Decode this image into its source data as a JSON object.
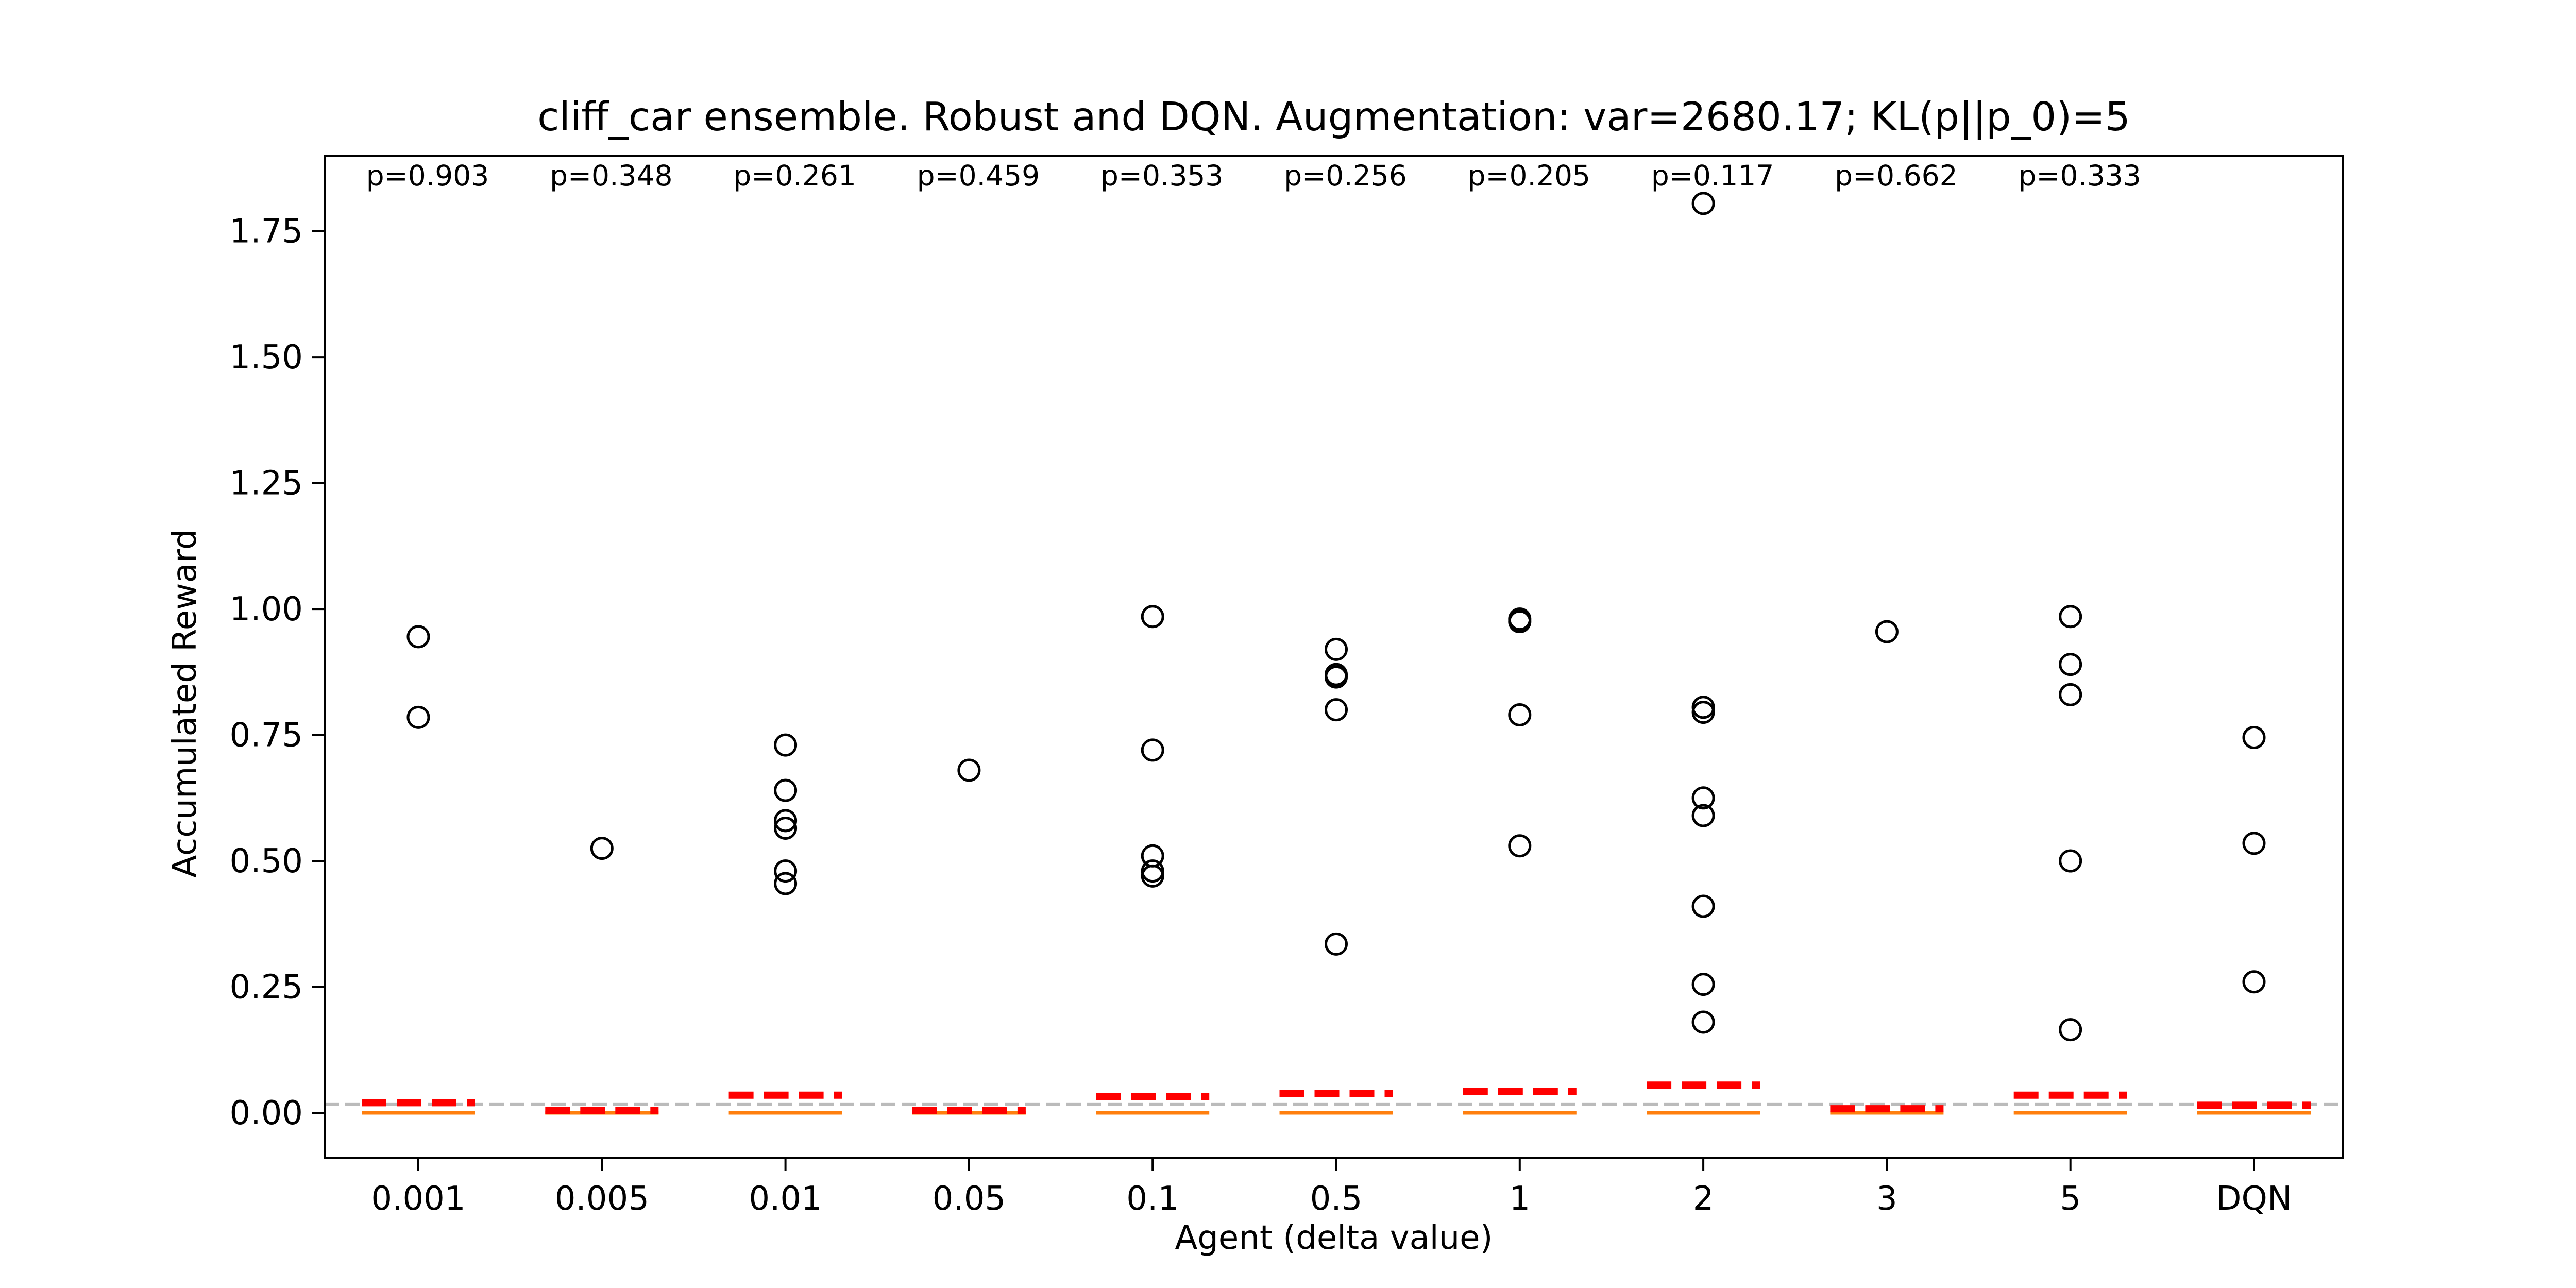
{
  "chart_data": {
    "type": "box",
    "title": "cliff_car ensemble. Robust and DQN. Augmentation: var=2680.17; KL(p||p_0)=5",
    "xlabel": "Agent (delta value)",
    "ylabel": "Accumulated Reward",
    "ylim": [
      -0.09,
      1.9
    ],
    "yticks": [
      0.0,
      0.25,
      0.5,
      0.75,
      1.0,
      1.25,
      1.5,
      1.75
    ],
    "ytick_labels": [
      "0.00",
      "0.25",
      "0.50",
      "0.75",
      "1.00",
      "1.25",
      "1.50",
      "1.75"
    ],
    "categories": [
      "0.001",
      "0.005",
      "0.01",
      "0.05",
      "0.1",
      "0.5",
      "1",
      "2",
      "3",
      "5",
      "DQN"
    ],
    "reference_line": {
      "y": 0.017,
      "style": "dashed",
      "color": "#bbbbbb"
    },
    "colors": {
      "median": "#ff7f0e",
      "mean": "#ff0000",
      "outlier": "#000000",
      "frame": "#000000"
    },
    "groups": [
      {
        "label": "0.001",
        "p_value": "p=0.903",
        "median": 0.0,
        "mean": 0.02,
        "outliers": [
          0.945,
          0.785
        ]
      },
      {
        "label": "0.005",
        "p_value": "p=0.348",
        "median": 0.0,
        "mean": 0.005,
        "outliers": [
          0.525
        ]
      },
      {
        "label": "0.01",
        "p_value": "p=0.261",
        "median": 0.0,
        "mean": 0.035,
        "outliers": [
          0.73,
          0.64,
          0.58,
          0.565,
          0.48,
          0.455
        ]
      },
      {
        "label": "0.05",
        "p_value": "p=0.459",
        "median": 0.0,
        "mean": 0.005,
        "outliers": [
          0.68
        ]
      },
      {
        "label": "0.1",
        "p_value": "p=0.353",
        "median": 0.0,
        "mean": 0.032,
        "outliers": [
          0.985,
          0.72,
          0.51,
          0.48,
          0.47
        ]
      },
      {
        "label": "0.5",
        "p_value": "p=0.256",
        "median": 0.0,
        "mean": 0.038,
        "outliers": [
          0.92,
          0.87,
          0.865,
          0.8,
          0.335
        ]
      },
      {
        "label": "1",
        "p_value": "p=0.205",
        "median": 0.0,
        "mean": 0.043,
        "outliers": [
          0.98,
          0.975,
          0.79,
          0.53
        ]
      },
      {
        "label": "2",
        "p_value": "p=0.117",
        "median": 0.0,
        "mean": 0.055,
        "outliers": [
          1.805,
          0.805,
          0.795,
          0.625,
          0.59,
          0.41,
          0.255,
          0.18
        ]
      },
      {
        "label": "3",
        "p_value": "p=0.662",
        "median": 0.0,
        "mean": 0.008,
        "outliers": [
          0.955
        ]
      },
      {
        "label": "5",
        "p_value": "p=0.333",
        "median": 0.0,
        "mean": 0.035,
        "outliers": [
          0.985,
          0.89,
          0.83,
          0.5,
          0.165
        ]
      },
      {
        "label": "DQN",
        "p_value": "",
        "median": 0.0,
        "mean": 0.015,
        "outliers": [
          0.745,
          0.535,
          0.26
        ]
      }
    ]
  }
}
